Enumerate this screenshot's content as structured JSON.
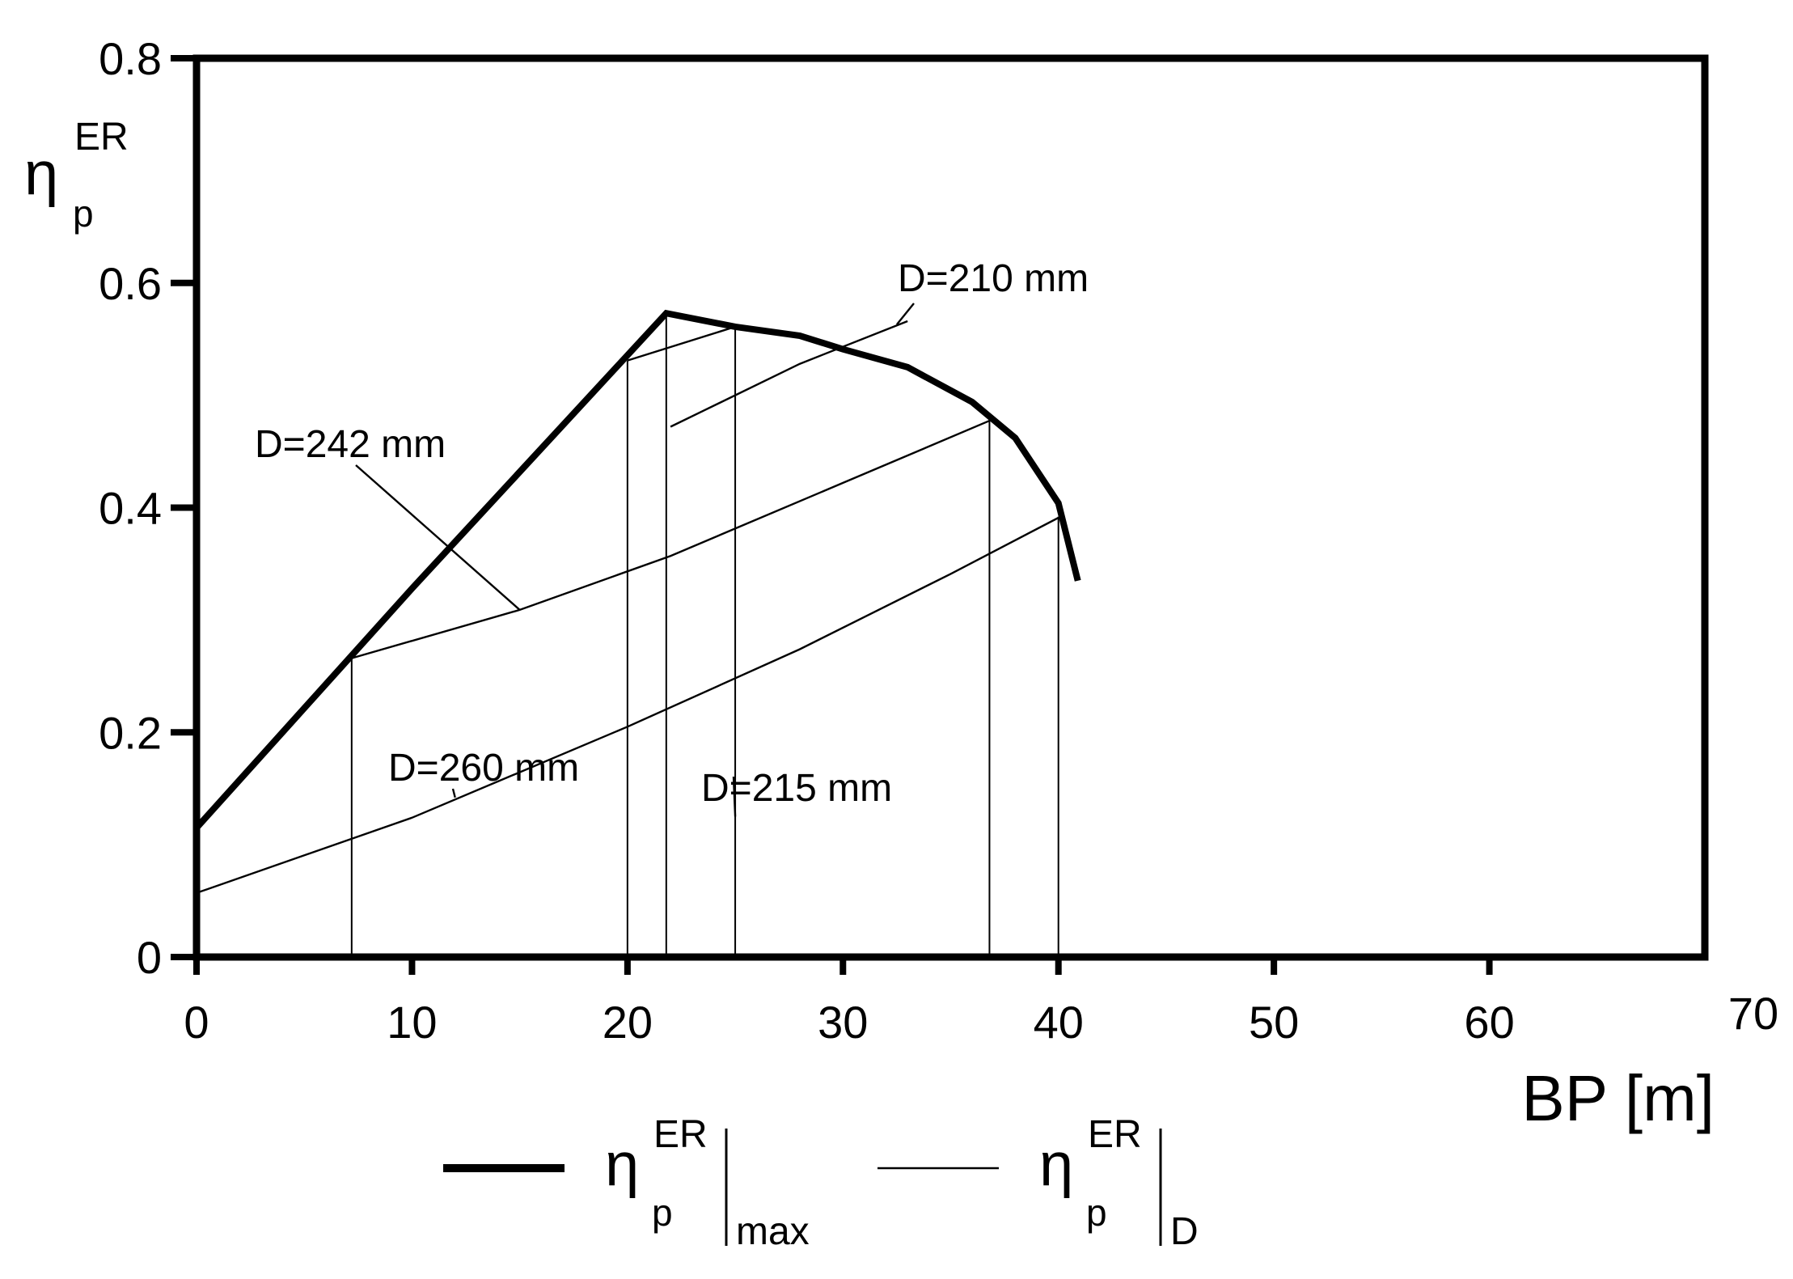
{
  "chart_data": {
    "type": "line",
    "title": "",
    "xlabel": "BP [m]",
    "ylabel": {
      "symbol": "η",
      "sub": "p",
      "sup": "ER"
    },
    "xlim": [
      0,
      70
    ],
    "ylim": [
      0,
      0.8
    ],
    "x_ticks": [
      "0",
      "10",
      "20",
      "30",
      "40",
      "50",
      "60",
      "70"
    ],
    "x_tick_values": [
      0,
      10,
      20,
      30,
      40,
      50,
      60,
      70
    ],
    "y_ticks": [
      "0",
      "0.2",
      "0.4",
      "0.6",
      "0.8"
    ],
    "y_tick_values": [
      0,
      0.2,
      0.4,
      0.6,
      0.8
    ],
    "grid": false,
    "legend_placement": "bottom-center",
    "series": [
      {
        "id": "max",
        "style": "thick",
        "legend": {
          "symbol": "η",
          "sub": "p",
          "sup": "ER",
          "cond": "max"
        },
        "x": [
          0,
          10,
          21.8,
          25,
          28,
          30,
          33,
          36,
          38,
          40,
          40.9
        ],
        "y": [
          0.115,
          0.328,
          0.573,
          0.561,
          0.553,
          0.541,
          0.525,
          0.494,
          0.462,
          0.404,
          0.335
        ]
      },
      {
        "id": "D",
        "style": "thin",
        "legend": {
          "symbol": "η",
          "sub": "p",
          "sup": "ER",
          "cond": "D"
        },
        "curves": [
          {
            "label": "D=260 mm",
            "x": [
              0,
              10,
              20,
              28,
              35,
              40
            ],
            "y": [
              0.057,
              0.124,
              0.205,
              0.274,
              0.341,
              0.391
            ]
          },
          {
            "label": "D=242 mm",
            "x": [
              7.2,
              15,
              22,
              30,
              37
            ],
            "y": [
              0.266,
              0.309,
              0.357,
              0.422,
              0.479
            ]
          },
          {
            "label": "D=215 mm",
            "x": [
              20,
              25
            ],
            "y": [
              0.531,
              0.561
            ]
          },
          {
            "label": "D=210 mm",
            "x": [
              22,
              28,
              33
            ],
            "y": [
              0.472,
              0.528,
              0.566
            ]
          }
        ],
        "verticals": [
          {
            "x": 7.2,
            "y": 0.266
          },
          {
            "x": 20,
            "y": 0.531
          },
          {
            "x": 21.8,
            "y": 0.573
          },
          {
            "x": 25,
            "y": 0.561
          },
          {
            "x": 36.8,
            "y": 0.482
          },
          {
            "x": 40,
            "y": 0.392
          }
        ]
      }
    ],
    "annotations": [
      {
        "text": "D=210 mm",
        "x": 32.5,
        "y": 0.6,
        "pointer_to": [
          32.5,
          0.563
        ]
      },
      {
        "text": "D=242 mm",
        "x": 2.8,
        "y": 0.447,
        "pointer_to": [
          15,
          0.309
        ]
      },
      {
        "text": "D=260 mm",
        "x": 9,
        "y": 0.168,
        "pointer_to": [
          12,
          0.142
        ]
      },
      {
        "text": "D=215 mm",
        "x": 23,
        "y": 0.15,
        "pointer_to": [
          25,
          0.125
        ]
      }
    ]
  }
}
